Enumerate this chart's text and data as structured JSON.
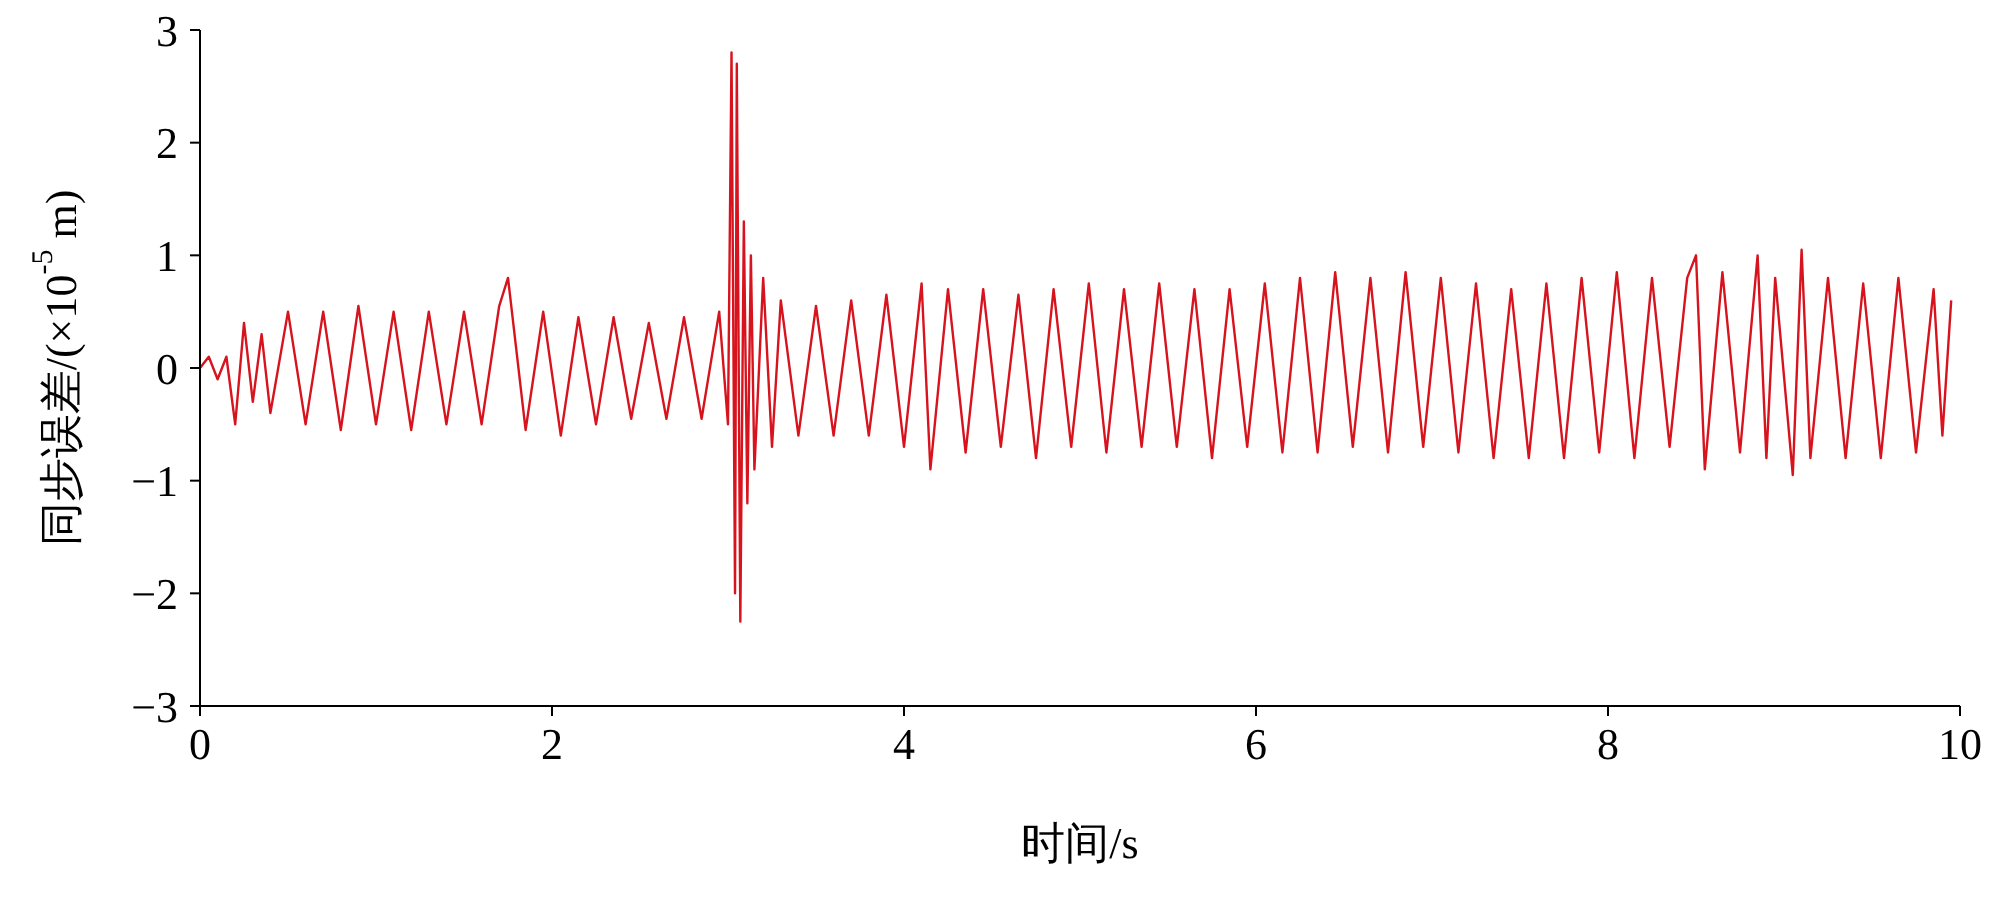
{
  "chart_data": {
    "type": "line",
    "xlabel": "时间/s",
    "ylabel": "同步误差/(×10$^{-5}$ m)",
    "xlim": [
      0,
      10
    ],
    "xticks": [
      0,
      2,
      4,
      6,
      8,
      10
    ],
    "ylim": [
      -3,
      3
    ],
    "yticks": [
      {
        "value": -3,
        "label": "−3"
      },
      {
        "value": -2,
        "label": "−2"
      },
      {
        "value": -1,
        "label": "−1"
      },
      0,
      1,
      2,
      3
    ],
    "x": [
      0,
      0.05,
      0.1,
      0.15,
      0.2,
      0.25,
      0.3,
      0.35,
      0.4,
      0.5,
      0.6,
      0.7,
      0.8,
      0.9,
      1.0,
      1.1,
      1.2,
      1.3,
      1.4,
      1.5,
      1.6,
      1.7,
      1.75,
      1.85,
      1.95,
      2.05,
      2.15,
      2.25,
      2.35,
      2.45,
      2.55,
      2.65,
      2.75,
      2.85,
      2.95,
      3.0,
      3.02,
      3.04,
      3.05,
      3.07,
      3.09,
      3.11,
      3.13,
      3.15,
      3.2,
      3.25,
      3.3,
      3.4,
      3.5,
      3.6,
      3.7,
      3.8,
      3.9,
      4.0,
      4.1,
      4.15,
      4.25,
      4.35,
      4.45,
      4.55,
      4.65,
      4.75,
      4.85,
      4.95,
      5.05,
      5.15,
      5.25,
      5.35,
      5.45,
      5.55,
      5.65,
      5.75,
      5.85,
      5.95,
      6.05,
      6.15,
      6.25,
      6.35,
      6.45,
      6.55,
      6.65,
      6.75,
      6.85,
      6.95,
      7.05,
      7.15,
      7.25,
      7.35,
      7.45,
      7.55,
      7.65,
      7.75,
      7.85,
      7.95,
      8.05,
      8.15,
      8.25,
      8.35,
      8.45,
      8.5,
      8.55,
      8.65,
      8.75,
      8.85,
      8.9,
      8.95,
      9.05,
      9.1,
      9.15,
      9.25,
      9.35,
      9.45,
      9.55,
      9.65,
      9.75,
      9.85,
      9.9,
      9.95
    ],
    "series": [
      {
        "color": "#d7141e",
        "values": [
          0,
          0.1,
          -0.1,
          0.1,
          -0.5,
          0.4,
          -0.3,
          0.3,
          -0.4,
          0.5,
          -0.5,
          0.5,
          -0.55,
          0.55,
          -0.5,
          0.5,
          -0.55,
          0.5,
          -0.5,
          0.5,
          -0.5,
          0.55,
          0.8,
          -0.55,
          0.5,
          -0.6,
          0.45,
          -0.5,
          0.45,
          -0.45,
          0.4,
          -0.45,
          0.45,
          -0.45,
          0.5,
          -0.5,
          2.8,
          -2.0,
          2.7,
          -2.25,
          1.3,
          -1.2,
          1.0,
          -0.9,
          0.8,
          -0.7,
          0.6,
          -0.6,
          0.55,
          -0.6,
          0.6,
          -0.6,
          0.65,
          -0.7,
          0.75,
          -0.9,
          0.7,
          -0.75,
          0.7,
          -0.7,
          0.65,
          -0.8,
          0.7,
          -0.7,
          0.75,
          -0.75,
          0.7,
          -0.7,
          0.75,
          -0.7,
          0.7,
          -0.8,
          0.7,
          -0.7,
          0.75,
          -0.75,
          0.8,
          -0.75,
          0.85,
          -0.7,
          0.8,
          -0.75,
          0.85,
          -0.7,
          0.8,
          -0.75,
          0.75,
          -0.8,
          0.7,
          -0.8,
          0.75,
          -0.8,
          0.8,
          -0.75,
          0.85,
          -0.8,
          0.8,
          -0.7,
          0.8,
          1.0,
          -0.9,
          0.85,
          -0.75,
          1.0,
          -0.8,
          0.8,
          -0.95,
          1.05,
          -0.8,
          0.8,
          -0.8,
          0.75,
          -0.8,
          0.8,
          -0.75,
          0.7,
          -0.6,
          0.6
        ]
      }
    ]
  }
}
